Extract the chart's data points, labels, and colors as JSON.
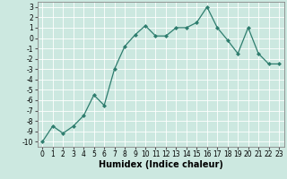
{
  "x": [
    0,
    1,
    2,
    3,
    4,
    5,
    6,
    7,
    8,
    9,
    10,
    11,
    12,
    13,
    14,
    15,
    16,
    17,
    18,
    19,
    20,
    21,
    22,
    23
  ],
  "y": [
    -10,
    -8.5,
    -9.2,
    -8.5,
    -7.5,
    -5.5,
    -6.5,
    -3.0,
    -0.8,
    0.3,
    1.2,
    0.2,
    0.2,
    1.0,
    1.0,
    1.5,
    3.0,
    1.0,
    -0.2,
    -1.5,
    1.0,
    -1.5,
    -2.5,
    -2.5
  ],
  "xlabel": "Humidex (Indice chaleur)",
  "xlim": [
    -0.5,
    23.5
  ],
  "ylim": [
    -10.5,
    3.5
  ],
  "yticks": [
    -10,
    -9,
    -8,
    -7,
    -6,
    -5,
    -4,
    -3,
    -2,
    -1,
    0,
    1,
    2,
    3
  ],
  "xticks": [
    0,
    1,
    2,
    3,
    4,
    5,
    6,
    7,
    8,
    9,
    10,
    11,
    12,
    13,
    14,
    15,
    16,
    17,
    18,
    19,
    20,
    21,
    22,
    23
  ],
  "line_color": "#2e7d6e",
  "marker": "D",
  "marker_size": 2.0,
  "bg_color": "#cce8e0",
  "grid_color": "#ffffff",
  "label_fontsize": 7,
  "tick_fontsize": 5.5
}
